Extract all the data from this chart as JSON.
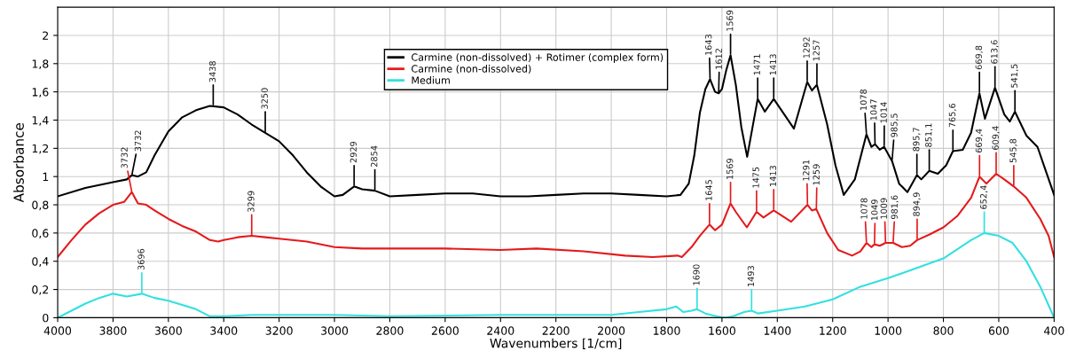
{
  "chart_data": {
    "type": "line",
    "xlabel": "Wavenumbers [1/cm]",
    "ylabel": "Absorbance",
    "xlim": [
      4000,
      400
    ],
    "xticks": [
      4000,
      3800,
      3600,
      3400,
      3200,
      3000,
      2800,
      2600,
      2400,
      2200,
      2000,
      1800,
      1600,
      1400,
      1200,
      1000,
      800,
      600,
      400
    ],
    "ylim": [
      0,
      2.2
    ],
    "yticks": [
      0,
      {
        "value": 0.2,
        "label": "0,2"
      },
      {
        "value": 0.4,
        "label": "0,4"
      },
      {
        "value": 0.6,
        "label": "0,6"
      },
      {
        "value": 0.8,
        "label": "0,8"
      },
      1,
      {
        "value": 1.2,
        "label": "1,2"
      },
      {
        "value": 1.4,
        "label": "1,4"
      },
      {
        "value": 1.6,
        "label": "1,6"
      },
      {
        "value": 1.8,
        "label": "1,8"
      },
      2
    ],
    "grid": true,
    "legend": "top",
    "line_style": "solid",
    "marker": "none",
    "series": [
      {
        "name": "Carmine (non-dissolved) + Rotimer (complex form)",
        "color": "#000000",
        "x": [
          4000,
          3900,
          3800,
          3750,
          3732,
          3710,
          3680,
          3650,
          3600,
          3550,
          3500,
          3450,
          3400,
          3350,
          3300,
          3250,
          3200,
          3150,
          3100,
          3050,
          3000,
          2970,
          2929,
          2900,
          2854,
          2800,
          2700,
          2600,
          2500,
          2400,
          2300,
          2200,
          2100,
          2000,
          1900,
          1800,
          1750,
          1720,
          1700,
          1680,
          1660,
          1643,
          1625,
          1612,
          1600,
          1585,
          1569,
          1550,
          1530,
          1509,
          1471,
          1445,
          1413,
          1340,
          1292,
          1275,
          1257,
          1220,
          1190,
          1160,
          1120,
          1078,
          1060,
          1047,
          1030,
          1014,
          985.5,
          960,
          930,
          895.7,
          880,
          851.1,
          820,
          790,
          765.6,
          730,
          700,
          669.8,
          650,
          613.6,
          580,
          560,
          541.5,
          500,
          460,
          430,
          400
        ],
        "values": [
          0.86,
          0.92,
          0.96,
          0.98,
          1.01,
          1.0,
          1.03,
          1.15,
          1.32,
          1.42,
          1.47,
          1.5,
          1.49,
          1.44,
          1.37,
          1.31,
          1.25,
          1.15,
          1.03,
          0.93,
          0.86,
          0.87,
          0.93,
          0.91,
          0.9,
          0.86,
          0.87,
          0.88,
          0.88,
          0.86,
          0.86,
          0.87,
          0.88,
          0.88,
          0.87,
          0.86,
          0.87,
          0.95,
          1.15,
          1.45,
          1.62,
          1.69,
          1.6,
          1.59,
          1.62,
          1.75,
          1.86,
          1.65,
          1.35,
          1.14,
          1.55,
          1.46,
          1.55,
          1.34,
          1.67,
          1.61,
          1.65,
          1.37,
          1.08,
          0.87,
          0.98,
          1.3,
          1.21,
          1.23,
          1.19,
          1.21,
          1.11,
          0.95,
          0.89,
          1.01,
          0.98,
          1.04,
          1.02,
          1.08,
          1.18,
          1.19,
          1.31,
          1.59,
          1.41,
          1.63,
          1.44,
          1.39,
          1.46,
          1.29,
          1.21,
          1.04,
          0.87
        ]
      },
      {
        "name": "Carmine (non-dissolved)",
        "color": "#e41a1c",
        "x": [
          4000,
          3950,
          3900,
          3850,
          3800,
          3760,
          3732,
          3710,
          3680,
          3650,
          3600,
          3550,
          3500,
          3450,
          3420,
          3400,
          3350,
          3299,
          3250,
          3200,
          3100,
          3000,
          2900,
          2800,
          2600,
          2400,
          2270,
          2100,
          1950,
          1850,
          1760,
          1745,
          1710,
          1680,
          1645,
          1625,
          1600,
          1569,
          1550,
          1510,
          1475,
          1450,
          1413,
          1350,
          1291,
          1275,
          1259,
          1220,
          1180,
          1130,
          1100,
          1078,
          1060,
          1049,
          1030,
          1009,
          981.6,
          950,
          920,
          894.9,
          850,
          800,
          750,
          700,
          669.4,
          645,
          609.4,
          580,
          545.8,
          500,
          450,
          420,
          400
        ],
        "values": [
          0.43,
          0.55,
          0.66,
          0.74,
          0.8,
          0.82,
          0.89,
          0.81,
          0.8,
          0.76,
          0.7,
          0.65,
          0.61,
          0.55,
          0.54,
          0.55,
          0.57,
          0.58,
          0.57,
          0.56,
          0.54,
          0.5,
          0.49,
          0.49,
          0.49,
          0.48,
          0.49,
          0.47,
          0.44,
          0.43,
          0.44,
          0.43,
          0.5,
          0.58,
          0.66,
          0.62,
          0.66,
          0.81,
          0.75,
          0.64,
          0.75,
          0.71,
          0.76,
          0.68,
          0.8,
          0.76,
          0.77,
          0.6,
          0.48,
          0.44,
          0.47,
          0.53,
          0.5,
          0.52,
          0.51,
          0.53,
          0.53,
          0.5,
          0.51,
          0.55,
          0.59,
          0.64,
          0.72,
          0.85,
          1.0,
          0.95,
          1.02,
          0.98,
          0.93,
          0.85,
          0.7,
          0.58,
          0.43
        ]
      },
      {
        "name": "Medium",
        "color": "#33e0e0",
        "x": [
          4000,
          3950,
          3900,
          3850,
          3800,
          3750,
          3696,
          3650,
          3600,
          3500,
          3450,
          3400,
          3300,
          3200,
          3000,
          2800,
          2400,
          2000,
          1900,
          1800,
          1765,
          1740,
          1710,
          1690,
          1660,
          1620,
          1590,
          1560,
          1520,
          1493,
          1470,
          1400,
          1300,
          1200,
          1100,
          1000,
          900,
          800,
          700,
          652.4,
          600,
          550,
          500,
          450,
          400
        ],
        "values": [
          0.0,
          0.05,
          0.1,
          0.14,
          0.17,
          0.15,
          0.17,
          0.14,
          0.12,
          0.06,
          0.01,
          0.01,
          0.02,
          0.02,
          0.02,
          0.01,
          0.02,
          0.02,
          0.04,
          0.06,
          0.08,
          0.04,
          0.05,
          0.06,
          0.03,
          0.01,
          0.0,
          0.01,
          0.04,
          0.05,
          0.03,
          0.05,
          0.08,
          0.13,
          0.22,
          0.28,
          0.35,
          0.42,
          0.55,
          0.6,
          0.58,
          0.53,
          0.4,
          0.22,
          0.0
        ]
      }
    ],
    "annotations": [
      {
        "text": "3732",
        "x": 3732,
        "y": 0.89
      },
      {
        "text": "3732",
        "x": 3732,
        "y": 1.01
      },
      {
        "text": "3438",
        "x": 3438,
        "y": 1.5
      },
      {
        "text": "3250",
        "x": 3250,
        "y": 1.31
      },
      {
        "text": "2929",
        "x": 2929,
        "y": 0.93
      },
      {
        "text": "2854",
        "x": 2854,
        "y": 0.9
      },
      {
        "text": "1643",
        "x": 1643,
        "y": 1.69
      },
      {
        "text": "1612",
        "x": 1612,
        "y": 1.59
      },
      {
        "text": "1569",
        "x": 1569,
        "y": 1.86
      },
      {
        "text": "1471",
        "x": 1471,
        "y": 1.55
      },
      {
        "text": "1413",
        "x": 1413,
        "y": 1.55
      },
      {
        "text": "1292",
        "x": 1292,
        "y": 1.67
      },
      {
        "text": "1257",
        "x": 1257,
        "y": 1.65
      },
      {
        "text": "1078",
        "x": 1078,
        "y": 1.3
      },
      {
        "text": "1047",
        "x": 1047,
        "y": 1.23
      },
      {
        "text": "1014",
        "x": 1014,
        "y": 1.21
      },
      {
        "text": "985,5",
        "x": 985.5,
        "y": 1.11
      },
      {
        "text": "895,7",
        "x": 895.7,
        "y": 1.01
      },
      {
        "text": "851,1",
        "x": 851.1,
        "y": 1.04
      },
      {
        "text": "765,6",
        "x": 765.6,
        "y": 1.18
      },
      {
        "text": "669,8",
        "x": 669.8,
        "y": 1.59
      },
      {
        "text": "613,6",
        "x": 613.6,
        "y": 1.63
      },
      {
        "text": "541,5",
        "x": 541.5,
        "y": 1.46
      },
      {
        "text": "3299",
        "x": 3299,
        "y": 0.58
      },
      {
        "text": "1645",
        "x": 1645,
        "y": 0.66
      },
      {
        "text": "1569",
        "x": 1569,
        "y": 0.81
      },
      {
        "text": "1475",
        "x": 1475,
        "y": 0.75
      },
      {
        "text": "1413",
        "x": 1413,
        "y": 0.76
      },
      {
        "text": "1291",
        "x": 1291,
        "y": 0.8
      },
      {
        "text": "1259",
        "x": 1259,
        "y": 0.77
      },
      {
        "text": "1078",
        "x": 1078,
        "y": 0.53
      },
      {
        "text": "1049",
        "x": 1049,
        "y": 0.52
      },
      {
        "text": "1009",
        "x": 1009,
        "y": 0.53
      },
      {
        "text": "981,6",
        "x": 981.6,
        "y": 0.53
      },
      {
        "text": "894,9",
        "x": 894.9,
        "y": 0.55
      },
      {
        "text": "669,4",
        "x": 669.4,
        "y": 1.0
      },
      {
        "text": "609,4",
        "x": 609.4,
        "y": 1.02
      },
      {
        "text": "545,8",
        "x": 545.8,
        "y": 0.93
      },
      {
        "text": "3696",
        "x": 3696,
        "y": 0.17
      },
      {
        "text": "1690",
        "x": 1690,
        "y": 0.06
      },
      {
        "text": "1493",
        "x": 1493,
        "y": 0.05
      },
      {
        "text": "652,4",
        "x": 652.4,
        "y": 0.6
      }
    ]
  }
}
